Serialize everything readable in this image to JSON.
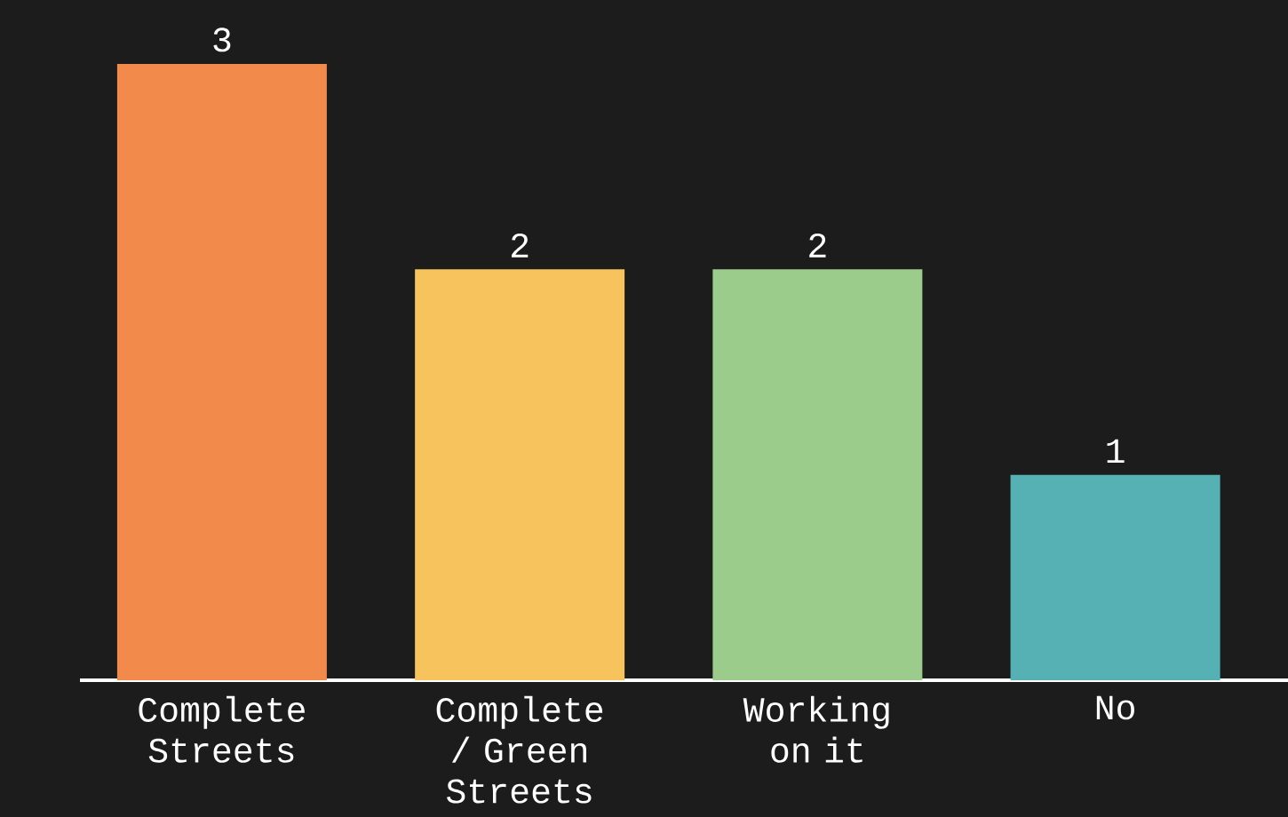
{
  "chart_data": {
    "type": "bar",
    "categories": [
      "Complete Streets",
      "Complete / Green Streets",
      "Working on it",
      "No"
    ],
    "values": [
      3,
      2,
      2,
      1
    ],
    "colors": [
      "#f28a4c",
      "#f6c35c",
      "#9ccc8c",
      "#55b1b3"
    ],
    "data_labels": true
  }
}
